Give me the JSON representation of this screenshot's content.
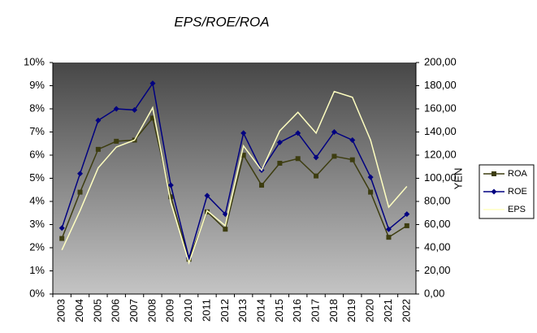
{
  "chart_data": {
    "type": "line",
    "title": "EPS/ROE/ROA",
    "categories": [
      "2003",
      "2004",
      "2005",
      "2006",
      "2007",
      "2008",
      "2009",
      "2010",
      "2011",
      "2012",
      "2013",
      "2014",
      "2015",
      "2016",
      "2017",
      "2018",
      "2019",
      "2020",
      "2021",
      "2022"
    ],
    "series": [
      {
        "name": "ROA",
        "color": "#3d3d10",
        "marker": "square",
        "values": [
          2.4,
          4.4,
          6.25,
          6.6,
          6.65,
          7.6,
          4.2,
          1.5,
          3.55,
          2.8,
          6.0,
          4.7,
          5.65,
          5.85,
          5.1,
          5.95,
          5.8,
          4.4,
          2.45,
          2.95
        ]
      },
      {
        "name": "ROE",
        "color": "#000080",
        "marker": "diamond",
        "values": [
          2.85,
          5.2,
          7.5,
          8.0,
          7.95,
          9.1,
          4.7,
          1.55,
          4.25,
          3.45,
          6.95,
          5.35,
          6.55,
          6.95,
          5.9,
          7.0,
          6.65,
          5.05,
          2.8,
          3.45
        ]
      },
      {
        "name": "EPS",
        "color": "#ffffc0",
        "marker": "none",
        "axis": "y2",
        "values": [
          38,
          72,
          109,
          127,
          133,
          161,
          79,
          27,
          72,
          59,
          128,
          107,
          141,
          157,
          139,
          175,
          170,
          133,
          75,
          93
        ]
      }
    ],
    "ylim": [
      0,
      10
    ],
    "yticks": [
      {
        "value": 0,
        "label": "0%"
      },
      {
        "value": 1,
        "label": "1%"
      },
      {
        "value": 2,
        "label": "2%"
      },
      {
        "value": 3,
        "label": "3%"
      },
      {
        "value": 4,
        "label": "4%"
      },
      {
        "value": 5,
        "label": "5%"
      },
      {
        "value": 6,
        "label": "6%"
      },
      {
        "value": 7,
        "label": "7%"
      },
      {
        "value": 8,
        "label": "8%"
      },
      {
        "value": 9,
        "label": "9%"
      },
      {
        "value": 10,
        "label": "10%"
      }
    ],
    "y2lim": [
      0,
      200
    ],
    "y2ticks": [
      {
        "value": 0,
        "label": "0,00"
      },
      {
        "value": 20,
        "label": "20,00"
      },
      {
        "value": 40,
        "label": "40,00"
      },
      {
        "value": 60,
        "label": "60,00"
      },
      {
        "value": 80,
        "label": "80,00"
      },
      {
        "value": 100,
        "label": "100,00"
      },
      {
        "value": 120,
        "label": "120,00"
      },
      {
        "value": 140,
        "label": "140,00"
      },
      {
        "value": 160,
        "label": "160,00"
      },
      {
        "value": 180,
        "label": "180,00"
      },
      {
        "value": 200,
        "label": "200,00"
      }
    ],
    "y2label": "YEN",
    "grid": false,
    "legend": "right"
  }
}
